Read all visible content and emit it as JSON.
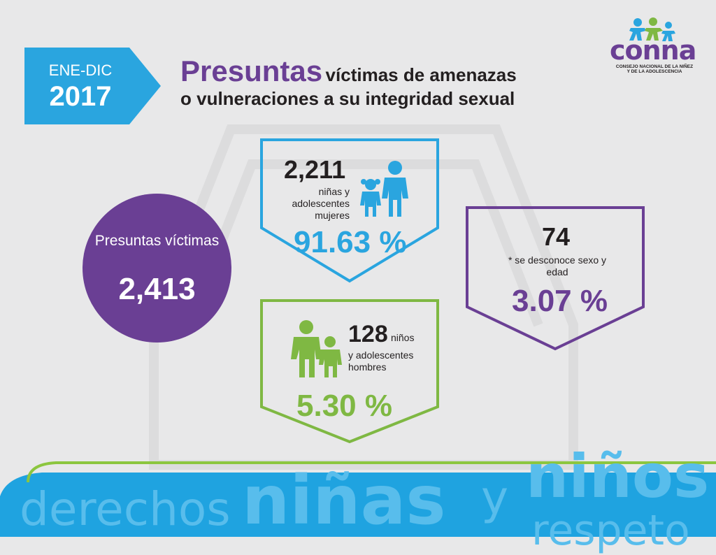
{
  "period": {
    "label": "ENE-DIC",
    "year": "2017"
  },
  "title": {
    "highlight": "Presuntas",
    "rest": "víctimas de amenazas",
    "line2": "o vulneraciones a su integridad sexual"
  },
  "logo": {
    "word": "conna",
    "subtitle": "CONSEJO NACIONAL DE LA NIÑEZ Y DE LA ADOLESCENCIA"
  },
  "total": {
    "label": "Presuntas víctimas",
    "value": "2,413"
  },
  "girls": {
    "count": "2,211",
    "description": "niñas y adolescentes mujeres",
    "percent": "91.63 %"
  },
  "unknown": {
    "count": "74",
    "description": "* se desconoce sexo y edad",
    "percent": "3.07 %"
  },
  "boys": {
    "count": "128",
    "description_first": "niños",
    "description_rest": "y adolescentes hombres",
    "percent": "5.30 %"
  },
  "footer": {
    "words": [
      "derechos",
      "niñas",
      "y",
      "niños",
      "respeto"
    ]
  },
  "colors": {
    "blue": "#2aa5df",
    "purple": "#6a3f94",
    "green": "#7fb843",
    "background": "#e8e8e9"
  }
}
